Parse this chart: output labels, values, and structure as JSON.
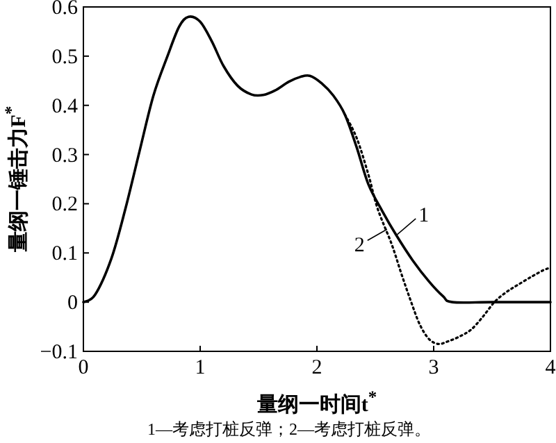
{
  "chart_data": {
    "type": "line",
    "xlabel": "量纲一时间t$^{*}$",
    "ylabel": "量纲一锤击力F$^{*}$",
    "xlim": [
      0,
      4
    ],
    "ylim": [
      -0.1,
      0.6
    ],
    "xticks": [
      0,
      1,
      2,
      3,
      4
    ],
    "yticks": [
      -0.1,
      0,
      0.1,
      0.2,
      0.3,
      0.4,
      0.5,
      0.6
    ],
    "grid": false,
    "marker": "none",
    "line_style": "solid",
    "series": [
      {
        "color": "#000000",
        "x": [
          0,
          0.1,
          0.24,
          0.36,
          0.48,
          0.6,
          0.72,
          0.82,
          0.9,
          1.0,
          1.1,
          1.2,
          1.32,
          1.44,
          1.54,
          1.64,
          1.76,
          1.86,
          1.94,
          2.04,
          2.14,
          2.24,
          2.34,
          2.44,
          2.56,
          2.68,
          2.82,
          2.96,
          3.08,
          3.16,
          3.5,
          4.0
        ],
        "values": [
          0,
          0.015,
          0.089,
          0.19,
          0.306,
          0.42,
          0.5,
          0.56,
          0.58,
          0.57,
          0.53,
          0.48,
          0.44,
          0.422,
          0.421,
          0.43,
          0.448,
          0.458,
          0.46,
          0.445,
          0.42,
          0.381,
          0.315,
          0.24,
          0.185,
          0.136,
          0.085,
          0.042,
          0.012,
          0,
          0,
          0
        ]
      },
      {
        "color": "#000000",
        "line_style": "dotted",
        "x": [
          2.24,
          2.34,
          2.44,
          2.52,
          2.64,
          2.72,
          2.8,
          2.88,
          2.96,
          3.04,
          3.12,
          3.22,
          3.32,
          3.42,
          3.52,
          3.62,
          3.72,
          3.84,
          3.94,
          4.0
        ],
        "values": [
          0.381,
          0.334,
          0.26,
          0.19,
          0.118,
          0.06,
          0.005,
          -0.045,
          -0.075,
          -0.085,
          -0.08,
          -0.07,
          -0.056,
          -0.03,
          0,
          0.02,
          0.035,
          0.052,
          0.065,
          0.07
        ]
      }
    ],
    "annotations": [
      {
        "text": "1",
        "x": 2.68,
        "y": 0.136
      },
      {
        "text": "2",
        "x": 2.6,
        "y": 0.148
      },
      "1—考虑打桩反弹；2—考虑打桩反弹。"
    ]
  }
}
